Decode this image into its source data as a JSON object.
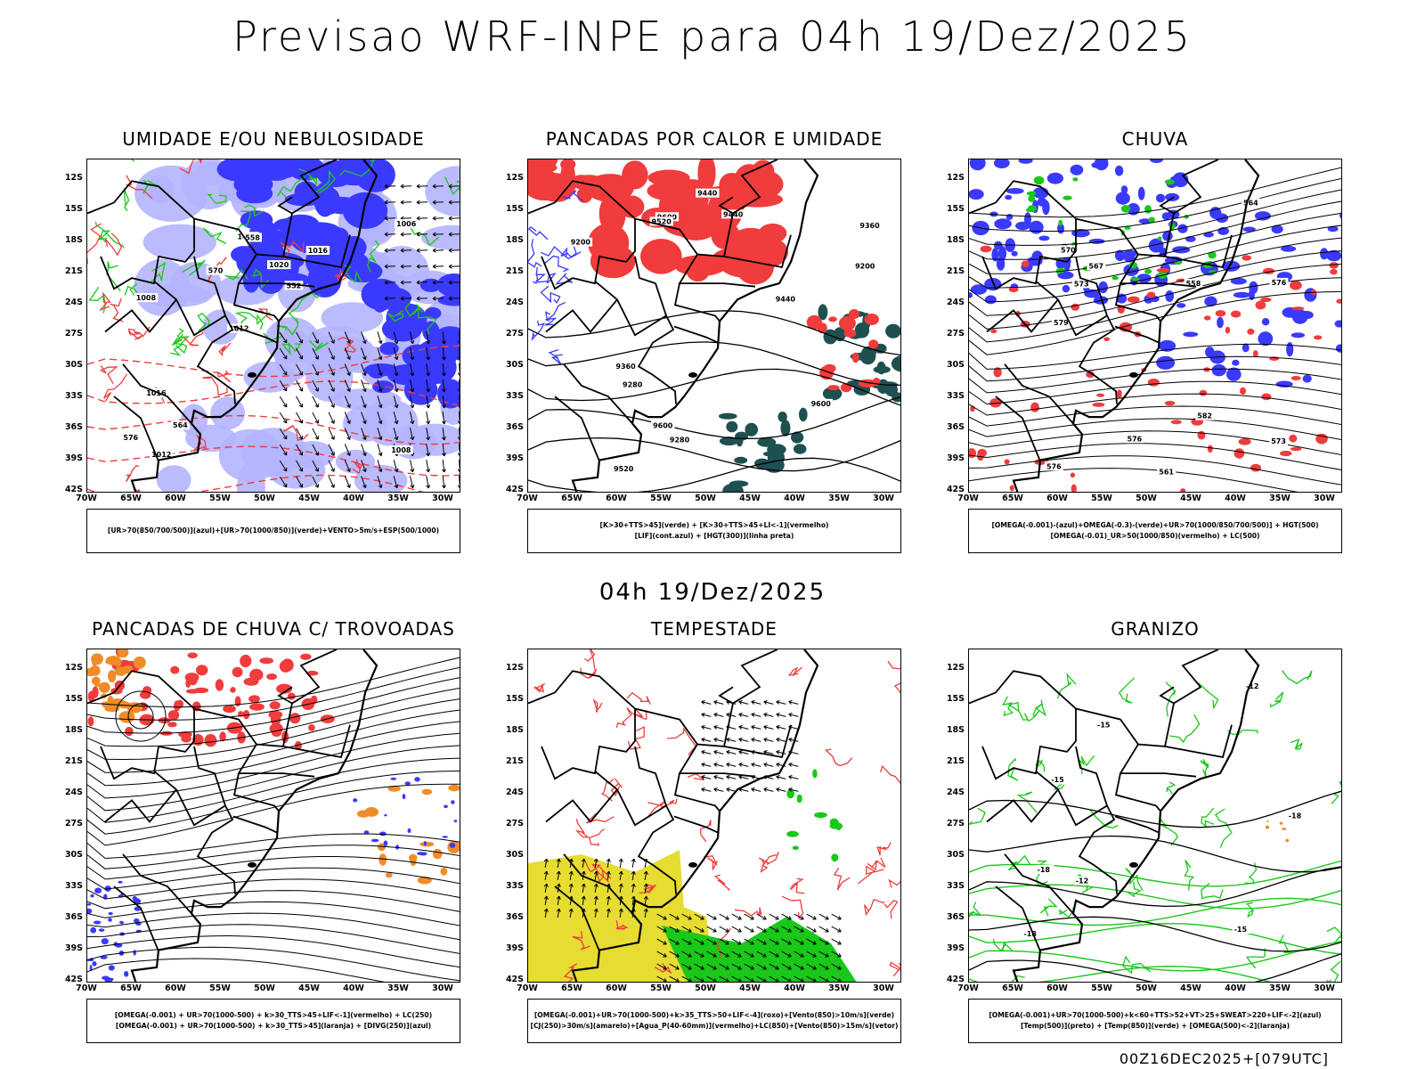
{
  "header": {
    "title": "Previsao WRF-INPE  para 04h 19/Dez/2025"
  },
  "middle": {
    "title": "04h 19/Dez/2025"
  },
  "footer": {
    "run": "00Z16DEC2025+[079UTC]"
  },
  "axes": {
    "lat": [
      "12S",
      "15S",
      "18S",
      "21S",
      "24S",
      "27S",
      "30S",
      "33S",
      "36S",
      "39S",
      "42S"
    ],
    "lon": [
      "70W",
      "65W",
      "60W",
      "55W",
      "50W",
      "45W",
      "40W",
      "35W",
      "30W"
    ]
  },
  "colors": {
    "blue": "#3a3aff",
    "lightblue": "#b4b4ff",
    "green": "#19c819",
    "red": "#f03c3c",
    "orange": "#f08c28",
    "yellow": "#e6dc32",
    "darkgreen": "#1e5050"
  },
  "panels": [
    {
      "id": "umidade",
      "title": "UMIDADE E/OU NEBULOSIDADE",
      "legend": [
        "[UR>70(850/700/500)](azul)+[UR>70(1000/850)](verde)+VENTO>5m/s+ESP(500/1000)"
      ],
      "contour_labels": [
        "1008",
        "1008",
        "1006",
        "1012",
        "1016",
        "1012",
        "1012",
        "1020",
        "1016",
        "570",
        "576",
        "564",
        "558",
        "552"
      ]
    },
    {
      "id": "pancadas-calor",
      "title": "PANCADAS POR CALOR E UMIDADE",
      "legend": [
        "[K>30+TTS>45](verde) + [K>30+TTS>45+LI<-1](vermelho)",
        "[LIF](cont.azul) + [HGT(300)](linha preta)"
      ],
      "contour_labels": [
        "9600",
        "9600",
        "9600",
        "9520",
        "9440",
        "9440",
        "9440",
        "9360",
        "9360",
        "9280",
        "9280",
        "9200",
        "9200",
        "9520"
      ]
    },
    {
      "id": "chuva",
      "title": "CHUVA",
      "legend": [
        "[OMEGA(-0.001)-(azul)+OMEGA(-0.3)-(verde)+UR>70(1000/850/700/500)] + HGT(500)",
        "[OMEGA(-0.01)_UR>50(1000/850)(vermelho) + LC(500)"
      ],
      "contour_labels": [
        "582",
        "579",
        "576",
        "576",
        "573",
        "570",
        "567",
        "564",
        "561",
        "558",
        "573",
        "576"
      ]
    },
    {
      "id": "trovoadas",
      "title": "PANCADAS DE CHUVA C/ TROVOADAS",
      "legend": [
        "[OMEGA(-0.001) + UR>70(1000-500) + k>30_TTS>45+LIF<-1](vermelho) + LC(250)",
        "[OMEGA(-0.001) + UR>70(1000-500) + k>30_TTS>45](laranja) + [DIVG(250)](azul)"
      ],
      "contour_labels": []
    },
    {
      "id": "tempestade",
      "title": "TEMPESTADE",
      "legend": [
        "[OMEGA(-0.001)+UR>70(1000-500)+k>35_TTS>50+LIF<-4](roxo)+[Vento(850)>10m/s](verde)",
        "[CJ(250)>30m/s](amarelo)+[Agua_P(40-60mm)](vermelho)+LC(850)+[Vento(850)>15m/s](vetor)"
      ],
      "contour_labels": []
    },
    {
      "id": "granizo",
      "title": "GRANIZO",
      "legend": [
        "[OMEGA(-0.001)+UR>70(1000-500)+k<60+TTS>52+VT>25+SWEAT>220+LIF<-2](azul)",
        "[Temp(500)](preto) + [Temp(850)](verde) + [OMEGA(500)<-2](laranja)"
      ],
      "contour_labels": [
        "-12",
        "-12",
        "-15",
        "-15",
        "-15",
        "-18",
        "-18",
        "-18"
      ]
    }
  ]
}
